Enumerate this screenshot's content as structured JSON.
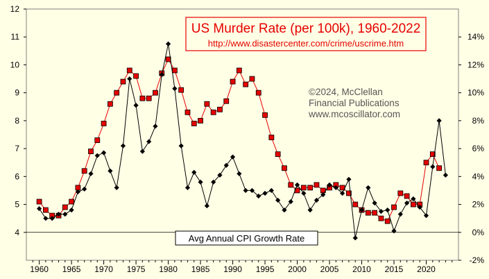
{
  "chart_data": {
    "type": "line",
    "title": "US Murder Rate (per 100k), 1960-2022",
    "source_url": "http://www.disastercenter.com/crime/uscrime.htm",
    "copyright_lines": [
      "©2024, McClellan",
      "Financial Publications",
      "www.mcoscillator.com"
    ],
    "cpi_label": "Avg Annual CPI Growth Rate",
    "colors": {
      "background": "#ffffe6",
      "murder": "#e60000",
      "cpi": "#000000",
      "title_border": "#e60000"
    },
    "x": {
      "min": 1958,
      "max": 2025,
      "ticks": [
        1960,
        1965,
        1970,
        1975,
        1980,
        1985,
        1990,
        1995,
        2000,
        2005,
        2010,
        2015,
        2020
      ]
    },
    "y_left": {
      "min": 3,
      "max": 12,
      "ticks": [
        4,
        5,
        6,
        7,
        8,
        9,
        10,
        11,
        12
      ]
    },
    "y_right": {
      "min": -2,
      "max": 16,
      "ticks": [
        -2,
        0,
        2,
        4,
        6,
        8,
        10,
        12,
        14
      ],
      "tick_labels": [
        "-2%",
        "0%",
        "2%",
        "4%",
        "6%",
        "8%",
        "10%",
        "12%",
        "14%"
      ]
    },
    "cpi_zero_line": 0,
    "series": [
      {
        "name": "US Murder Rate (per 100k)",
        "axis": "left",
        "marker": "square",
        "points": [
          [
            1960,
            5.1
          ],
          [
            1961,
            4.8
          ],
          [
            1962,
            4.6
          ],
          [
            1963,
            4.6
          ],
          [
            1964,
            4.9
          ],
          [
            1965,
            5.1
          ],
          [
            1966,
            5.6
          ],
          [
            1967,
            6.2
          ],
          [
            1968,
            6.9
          ],
          [
            1969,
            7.3
          ],
          [
            1970,
            7.9
          ],
          [
            1971,
            8.6
          ],
          [
            1972,
            9.0
          ],
          [
            1973,
            9.4
          ],
          [
            1974,
            9.8
          ],
          [
            1975,
            9.6
          ],
          [
            1976,
            8.8
          ],
          [
            1977,
            8.8
          ],
          [
            1978,
            9.0
          ],
          [
            1979,
            9.7
          ],
          [
            1980,
            10.2
          ],
          [
            1981,
            9.8
          ],
          [
            1982,
            9.1
          ],
          [
            1983,
            8.3
          ],
          [
            1984,
            7.9
          ],
          [
            1985,
            8.0
          ],
          [
            1986,
            8.6
          ],
          [
            1987,
            8.3
          ],
          [
            1988,
            8.4
          ],
          [
            1989,
            8.7
          ],
          [
            1990,
            9.4
          ],
          [
            1991,
            9.8
          ],
          [
            1992,
            9.3
          ],
          [
            1993,
            9.5
          ],
          [
            1994,
            9.0
          ],
          [
            1995,
            8.2
          ],
          [
            1996,
            7.4
          ],
          [
            1997,
            6.8
          ],
          [
            1998,
            6.3
          ],
          [
            1999,
            5.7
          ],
          [
            2000,
            5.5
          ],
          [
            2001,
            5.6
          ],
          [
            2002,
            5.6
          ],
          [
            2003,
            5.7
          ],
          [
            2004,
            5.5
          ],
          [
            2005,
            5.6
          ],
          [
            2006,
            5.7
          ],
          [
            2007,
            5.6
          ],
          [
            2008,
            5.4
          ],
          [
            2009,
            5.0
          ],
          [
            2010,
            4.8
          ],
          [
            2011,
            4.7
          ],
          [
            2012,
            4.7
          ],
          [
            2013,
            4.5
          ],
          [
            2014,
            4.4
          ],
          [
            2015,
            4.9
          ],
          [
            2016,
            5.4
          ],
          [
            2017,
            5.3
          ],
          [
            2018,
            5.0
          ],
          [
            2019,
            5.0
          ],
          [
            2020,
            6.5
          ],
          [
            2021,
            6.8
          ],
          [
            2022,
            6.3
          ]
        ]
      },
      {
        "name": "Avg Annual CPI Growth Rate",
        "axis": "right",
        "marker": "diamond",
        "points": [
          [
            1960,
            1.7
          ],
          [
            1961,
            1.0
          ],
          [
            1962,
            1.0
          ],
          [
            1963,
            1.3
          ],
          [
            1964,
            1.3
          ],
          [
            1965,
            1.6
          ],
          [
            1966,
            2.9
          ],
          [
            1967,
            3.1
          ],
          [
            1968,
            4.2
          ],
          [
            1969,
            5.5
          ],
          [
            1970,
            5.7
          ],
          [
            1971,
            4.4
          ],
          [
            1972,
            3.2
          ],
          [
            1973,
            6.2
          ],
          [
            1974,
            11.0
          ],
          [
            1975,
            9.1
          ],
          [
            1976,
            5.8
          ],
          [
            1977,
            6.5
          ],
          [
            1978,
            7.6
          ],
          [
            1979,
            11.3
          ],
          [
            1980,
            13.5
          ],
          [
            1981,
            10.3
          ],
          [
            1982,
            6.2
          ],
          [
            1983,
            3.2
          ],
          [
            1984,
            4.3
          ],
          [
            1985,
            3.6
          ],
          [
            1986,
            1.9
          ],
          [
            1987,
            3.6
          ],
          [
            1988,
            4.1
          ],
          [
            1989,
            4.8
          ],
          [
            1990,
            5.4
          ],
          [
            1991,
            4.2
          ],
          [
            1992,
            3.0
          ],
          [
            1993,
            3.0
          ],
          [
            1994,
            2.6
          ],
          [
            1995,
            2.8
          ],
          [
            1996,
            3.0
          ],
          [
            1997,
            2.3
          ],
          [
            1998,
            1.6
          ],
          [
            1999,
            2.2
          ],
          [
            2000,
            3.4
          ],
          [
            2001,
            2.8
          ],
          [
            2002,
            1.6
          ],
          [
            2003,
            2.3
          ],
          [
            2004,
            2.7
          ],
          [
            2005,
            3.4
          ],
          [
            2006,
            3.2
          ],
          [
            2007,
            2.8
          ],
          [
            2008,
            3.8
          ],
          [
            2009,
            -0.4
          ],
          [
            2010,
            1.6
          ],
          [
            2011,
            3.2
          ],
          [
            2012,
            2.1
          ],
          [
            2013,
            1.5
          ],
          [
            2014,
            1.6
          ],
          [
            2015,
            0.1
          ],
          [
            2016,
            1.3
          ],
          [
            2017,
            2.1
          ],
          [
            2018,
            2.4
          ],
          [
            2019,
            1.8
          ],
          [
            2020,
            1.2
          ],
          [
            2021,
            4.7
          ],
          [
            2022,
            8.0
          ],
          [
            2023,
            4.1
          ]
        ]
      }
    ]
  }
}
